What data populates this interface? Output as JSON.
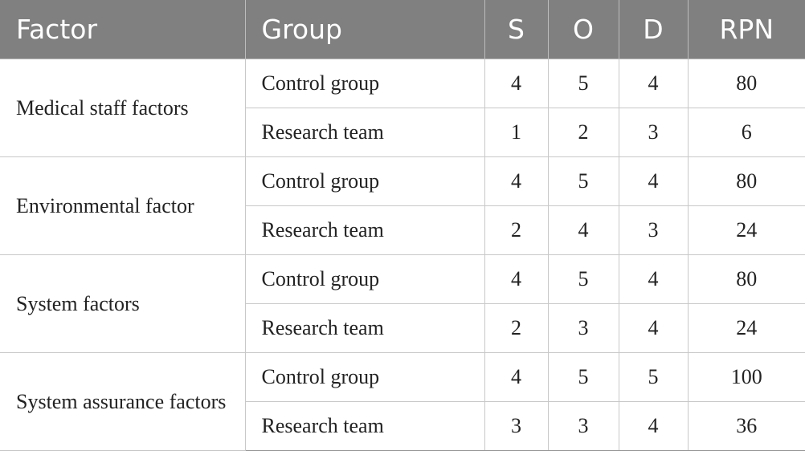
{
  "table": {
    "headers": {
      "factor": "Factor",
      "group": "Group",
      "s": "S",
      "o": "O",
      "d": "D",
      "rpn": "RPN"
    },
    "sections": [
      {
        "factor": "Medical staff factors",
        "rows": [
          {
            "group": "Control group",
            "s": "4",
            "o": "5",
            "d": "4",
            "rpn": "80"
          },
          {
            "group": "Research team",
            "s": "1",
            "o": "2",
            "d": "3",
            "rpn": "6"
          }
        ]
      },
      {
        "factor": "Environmental factor",
        "rows": [
          {
            "group": "Control group",
            "s": "4",
            "o": "5",
            "d": "4",
            "rpn": "80"
          },
          {
            "group": "Research team",
            "s": "2",
            "o": "4",
            "d": "3",
            "rpn": "24"
          }
        ]
      },
      {
        "factor": "System factors",
        "rows": [
          {
            "group": "Control group",
            "s": "4",
            "o": "5",
            "d": "4",
            "rpn": "80"
          },
          {
            "group": "Research team",
            "s": "2",
            "o": "3",
            "d": "4",
            "rpn": "24"
          }
        ]
      },
      {
        "factor": "System assurance factors",
        "rows": [
          {
            "group": "Control group",
            "s": "4",
            "o": "5",
            "d": "5",
            "rpn": "100"
          },
          {
            "group": "Research team",
            "s": "3",
            "o": "3",
            "d": "4",
            "rpn": "36"
          }
        ]
      }
    ]
  },
  "colors": {
    "header_bg": "#808080",
    "header_text": "#ffffff",
    "grid_line": "#c8c8c8"
  }
}
